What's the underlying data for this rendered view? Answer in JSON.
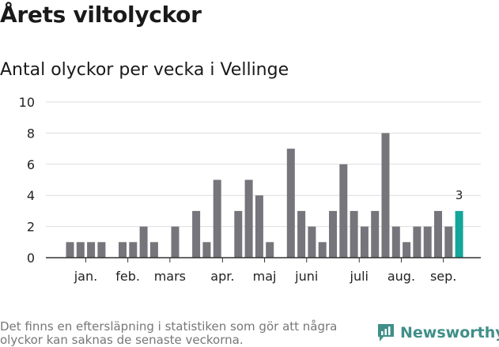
{
  "title": "Årets viltolyckor",
  "subtitle": "Antal olyckor per vecka i Vellinge",
  "footnote": "Det finns en eftersläpning i statistiken som gör att några olyckor kan saknas de senaste veckorna.",
  "logo_text": "Newsworthy",
  "colors": {
    "bar": "#76757b",
    "highlight": "#14a69a",
    "grid": "#dddddd",
    "axis": "#333333",
    "logo": "#3f8f88"
  },
  "chart_data": {
    "type": "bar",
    "x": [
      1,
      2,
      3,
      4,
      5,
      6,
      7,
      8,
      9,
      10,
      11,
      12,
      13,
      14,
      15,
      16,
      17,
      18,
      19,
      20,
      21,
      22,
      23,
      24,
      25,
      26,
      27,
      28,
      29,
      30,
      31,
      32,
      33,
      34,
      35,
      36,
      37,
      38,
      39,
      40
    ],
    "values": [
      1,
      1,
      1,
      1,
      null,
      1,
      1,
      2,
      1,
      null,
      2,
      null,
      3,
      1,
      5,
      null,
      3,
      5,
      4,
      1,
      null,
      7,
      3,
      2,
      1,
      3,
      6,
      3,
      2,
      3,
      8,
      2,
      1,
      2,
      2,
      3,
      2,
      3,
      null,
      null
    ],
    "highlight_index": 37,
    "data_labels": [
      {
        "index": 37,
        "text": "3"
      }
    ],
    "ylim": [
      0,
      10
    ],
    "yticks": [
      "0",
      "2",
      "4",
      "6",
      "8",
      "10"
    ],
    "month_labels": [
      {
        "label": "jan.",
        "x": 2.5
      },
      {
        "label": "feb.",
        "x": 6.5
      },
      {
        "label": "mars",
        "x": 10.5
      },
      {
        "label": "apr.",
        "x": 15.5
      },
      {
        "label": "maj",
        "x": 19.5
      },
      {
        "label": "juni",
        "x": 23.5
      },
      {
        "label": "juli",
        "x": 28.5
      },
      {
        "label": "aug.",
        "x": 32.5
      },
      {
        "label": "sep.",
        "x": 36.5
      }
    ],
    "grid": true,
    "legend": "none"
  }
}
